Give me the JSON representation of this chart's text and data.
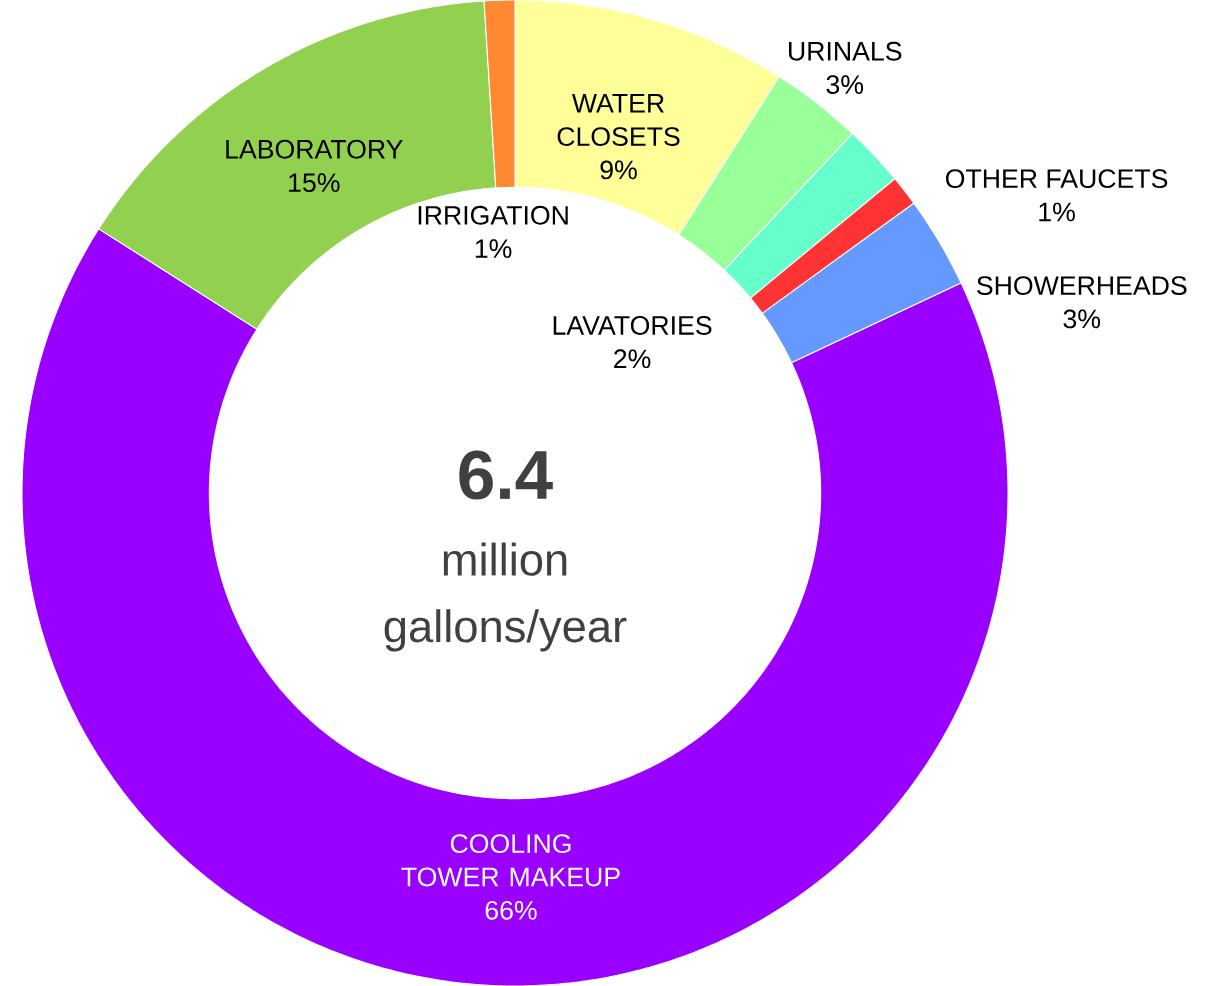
{
  "chart_data": {
    "type": "donut",
    "categories": [
      "WATER CLOSETS",
      "URINALS",
      "LAVATORIES",
      "OTHER FAUCETS",
      "SHOWERHEADS",
      "COOLING TOWER MAKEUP",
      "LABORATORY",
      "IRRIGATION"
    ],
    "values": [
      9,
      3,
      2,
      1,
      3,
      66,
      15,
      1
    ],
    "colors": [
      "#ffff99",
      "#99ff99",
      "#66ffcc",
      "#ff3333",
      "#6699ff",
      "#9900ff",
      "#92d050",
      "#ff8833"
    ],
    "value_labels": [
      "9%",
      "3%",
      "2%",
      "1%",
      "3%",
      "66%",
      "15%",
      "1%"
    ],
    "annotations": [
      "6.4",
      "million gallons/year"
    ]
  }
}
